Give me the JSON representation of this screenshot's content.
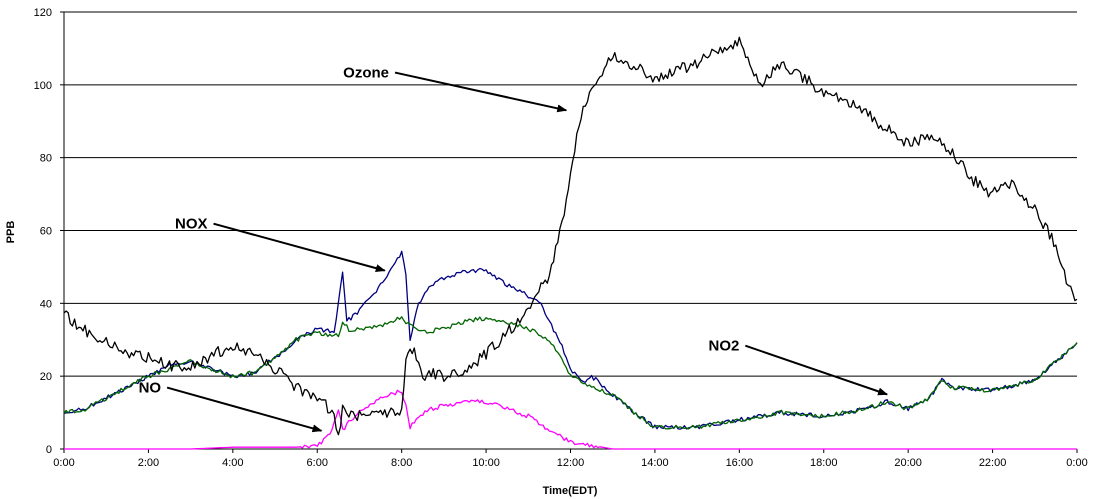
{
  "chart_data": {
    "type": "line",
    "title": "",
    "xlabel": "Time(EDT)",
    "ylabel": "PPB",
    "x_unit": "hours",
    "xlim": [
      0,
      24
    ],
    "ylim": [
      0,
      120
    ],
    "y_ticks": [
      0,
      20,
      40,
      60,
      80,
      100,
      120
    ],
    "x_ticks": [
      "0:00",
      "2:00",
      "4:00",
      "6:00",
      "8:00",
      "10:00",
      "12:00",
      "14:00",
      "16:00",
      "18:00",
      "20:00",
      "22:00",
      "0:00"
    ],
    "grid": "horizontal",
    "legend": "none",
    "series": [
      {
        "name": "NOX",
        "color": "#000080",
        "points": [
          [
            0,
            10
          ],
          [
            0.5,
            11
          ],
          [
            1,
            14
          ],
          [
            1.5,
            17
          ],
          [
            2,
            20
          ],
          [
            2.5,
            23
          ],
          [
            3,
            24
          ],
          [
            3.5,
            22
          ],
          [
            4,
            20
          ],
          [
            4.5,
            21
          ],
          [
            5,
            25
          ],
          [
            5.5,
            30
          ],
          [
            6,
            33
          ],
          [
            6.4,
            32
          ],
          [
            6.6,
            48
          ],
          [
            6.7,
            35
          ],
          [
            7,
            38
          ],
          [
            7.5,
            45
          ],
          [
            7.8,
            50
          ],
          [
            8,
            54
          ],
          [
            8.1,
            48
          ],
          [
            8.2,
            30
          ],
          [
            8.4,
            40
          ],
          [
            8.7,
            45
          ],
          [
            9,
            47
          ],
          [
            9.5,
            49
          ],
          [
            10,
            49
          ],
          [
            10.5,
            45
          ],
          [
            11,
            42
          ],
          [
            11.3,
            40
          ],
          [
            11.5,
            35
          ],
          [
            11.8,
            28
          ],
          [
            12,
            22
          ],
          [
            12.3,
            18
          ],
          [
            12.5,
            20
          ],
          [
            13,
            15
          ],
          [
            13.5,
            10
          ],
          [
            14,
            6
          ],
          [
            15,
            6
          ],
          [
            16,
            8
          ],
          [
            17,
            10
          ],
          [
            18,
            9
          ],
          [
            19,
            11
          ],
          [
            19.5,
            13
          ],
          [
            20,
            11
          ],
          [
            20.5,
            14
          ],
          [
            20.8,
            19
          ],
          [
            21,
            17
          ],
          [
            22,
            16
          ],
          [
            23,
            19
          ],
          [
            23.5,
            24
          ],
          [
            24,
            29
          ]
        ]
      },
      {
        "name": "NO2",
        "color": "#006400",
        "points": [
          [
            0,
            10
          ],
          [
            0.5,
            11
          ],
          [
            1,
            14
          ],
          [
            1.5,
            17
          ],
          [
            2,
            20
          ],
          [
            2.5,
            22
          ],
          [
            3,
            24
          ],
          [
            3.5,
            22
          ],
          [
            4,
            20
          ],
          [
            4.5,
            21
          ],
          [
            5,
            25
          ],
          [
            5.5,
            30
          ],
          [
            6,
            32
          ],
          [
            6.5,
            31
          ],
          [
            6.6,
            35
          ],
          [
            6.8,
            32
          ],
          [
            7,
            33
          ],
          [
            7.5,
            34
          ],
          [
            8,
            36
          ],
          [
            8.2,
            34
          ],
          [
            8.5,
            32
          ],
          [
            9,
            33
          ],
          [
            9.5,
            35
          ],
          [
            10,
            36
          ],
          [
            10.5,
            35
          ],
          [
            11,
            33
          ],
          [
            11.5,
            30
          ],
          [
            11.8,
            25
          ],
          [
            12,
            20
          ],
          [
            12.5,
            17
          ],
          [
            13,
            15
          ],
          [
            13.5,
            10
          ],
          [
            14,
            6
          ],
          [
            15,
            6
          ],
          [
            16,
            8
          ],
          [
            17,
            10
          ],
          [
            18,
            9
          ],
          [
            19,
            11
          ],
          [
            19.5,
            13
          ],
          [
            20,
            11
          ],
          [
            20.5,
            14
          ],
          [
            20.8,
            19
          ],
          [
            21,
            17
          ],
          [
            22,
            16
          ],
          [
            23,
            19
          ],
          [
            23.5,
            24
          ],
          [
            24,
            29
          ]
        ]
      },
      {
        "name": "NO",
        "color": "#ff00ff",
        "points": [
          [
            0,
            0
          ],
          [
            3,
            0
          ],
          [
            4,
            0.5
          ],
          [
            5.5,
            0.5
          ],
          [
            6,
            1
          ],
          [
            6.3,
            4
          ],
          [
            6.5,
            11
          ],
          [
            6.6,
            5
          ],
          [
            6.8,
            8
          ],
          [
            7,
            10
          ],
          [
            7.5,
            14
          ],
          [
            8,
            16
          ],
          [
            8.1,
            12
          ],
          [
            8.2,
            6
          ],
          [
            8.4,
            9
          ],
          [
            8.7,
            11
          ],
          [
            9,
            12
          ],
          [
            9.5,
            13
          ],
          [
            10,
            13
          ],
          [
            10.5,
            11
          ],
          [
            11,
            9
          ],
          [
            11.5,
            5
          ],
          [
            12,
            2
          ],
          [
            12.5,
            1
          ],
          [
            13,
            0
          ],
          [
            24,
            0
          ]
        ]
      },
      {
        "name": "Ozone",
        "color": "#000000",
        "points": [
          [
            0,
            37
          ],
          [
            0.3,
            34
          ],
          [
            0.7,
            31
          ],
          [
            1,
            29
          ],
          [
            1.5,
            26
          ],
          [
            2,
            25
          ],
          [
            2.5,
            23
          ],
          [
            3,
            22
          ],
          [
            3.5,
            26
          ],
          [
            4,
            28
          ],
          [
            4.5,
            26
          ],
          [
            5,
            22
          ],
          [
            5.5,
            17
          ],
          [
            6,
            14
          ],
          [
            6.2,
            12
          ],
          [
            6.4,
            9
          ],
          [
            6.5,
            4
          ],
          [
            6.6,
            11
          ],
          [
            6.8,
            9
          ],
          [
            7,
            9
          ],
          [
            7.5,
            10
          ],
          [
            8,
            11
          ],
          [
            8.1,
            25
          ],
          [
            8.3,
            27
          ],
          [
            8.5,
            20
          ],
          [
            8.7,
            21
          ],
          [
            9,
            20
          ],
          [
            9.5,
            22
          ],
          [
            10,
            26
          ],
          [
            10.5,
            32
          ],
          [
            11,
            38
          ],
          [
            11.5,
            48
          ],
          [
            11.8,
            62
          ],
          [
            12,
            75
          ],
          [
            12.2,
            90
          ],
          [
            12.5,
            100
          ],
          [
            13,
            108
          ],
          [
            13.5,
            105
          ],
          [
            14,
            102
          ],
          [
            14.5,
            104
          ],
          [
            15,
            106
          ],
          [
            15.5,
            110
          ],
          [
            16,
            112
          ],
          [
            16.3,
            105
          ],
          [
            16.5,
            100
          ],
          [
            17,
            106
          ],
          [
            17.5,
            102
          ],
          [
            18,
            98
          ],
          [
            18.5,
            96
          ],
          [
            19,
            92
          ],
          [
            19.5,
            88
          ],
          [
            20,
            84
          ],
          [
            20.5,
            86
          ],
          [
            21,
            82
          ],
          [
            21.3,
            78
          ],
          [
            21.5,
            74
          ],
          [
            22,
            70
          ],
          [
            22.3,
            73
          ],
          [
            22.5,
            72
          ],
          [
            23,
            66
          ],
          [
            23.5,
            56
          ],
          [
            23.8,
            45
          ],
          [
            24,
            41
          ]
        ]
      }
    ],
    "annotations": [
      {
        "label": "Ozone",
        "text_at": [
          7.7,
          102
        ],
        "arrow_to": [
          11.9,
          93
        ]
      },
      {
        "label": "NOX",
        "text_at": [
          3.4,
          60.5
        ],
        "arrow_to": [
          7.6,
          49
        ]
      },
      {
        "label": "NO",
        "text_at": [
          2.3,
          15.5
        ],
        "arrow_to": [
          6.1,
          5
        ]
      },
      {
        "label": "NO2",
        "text_at": [
          16.0,
          27
        ],
        "arrow_to": [
          19.5,
          15
        ]
      }
    ]
  }
}
